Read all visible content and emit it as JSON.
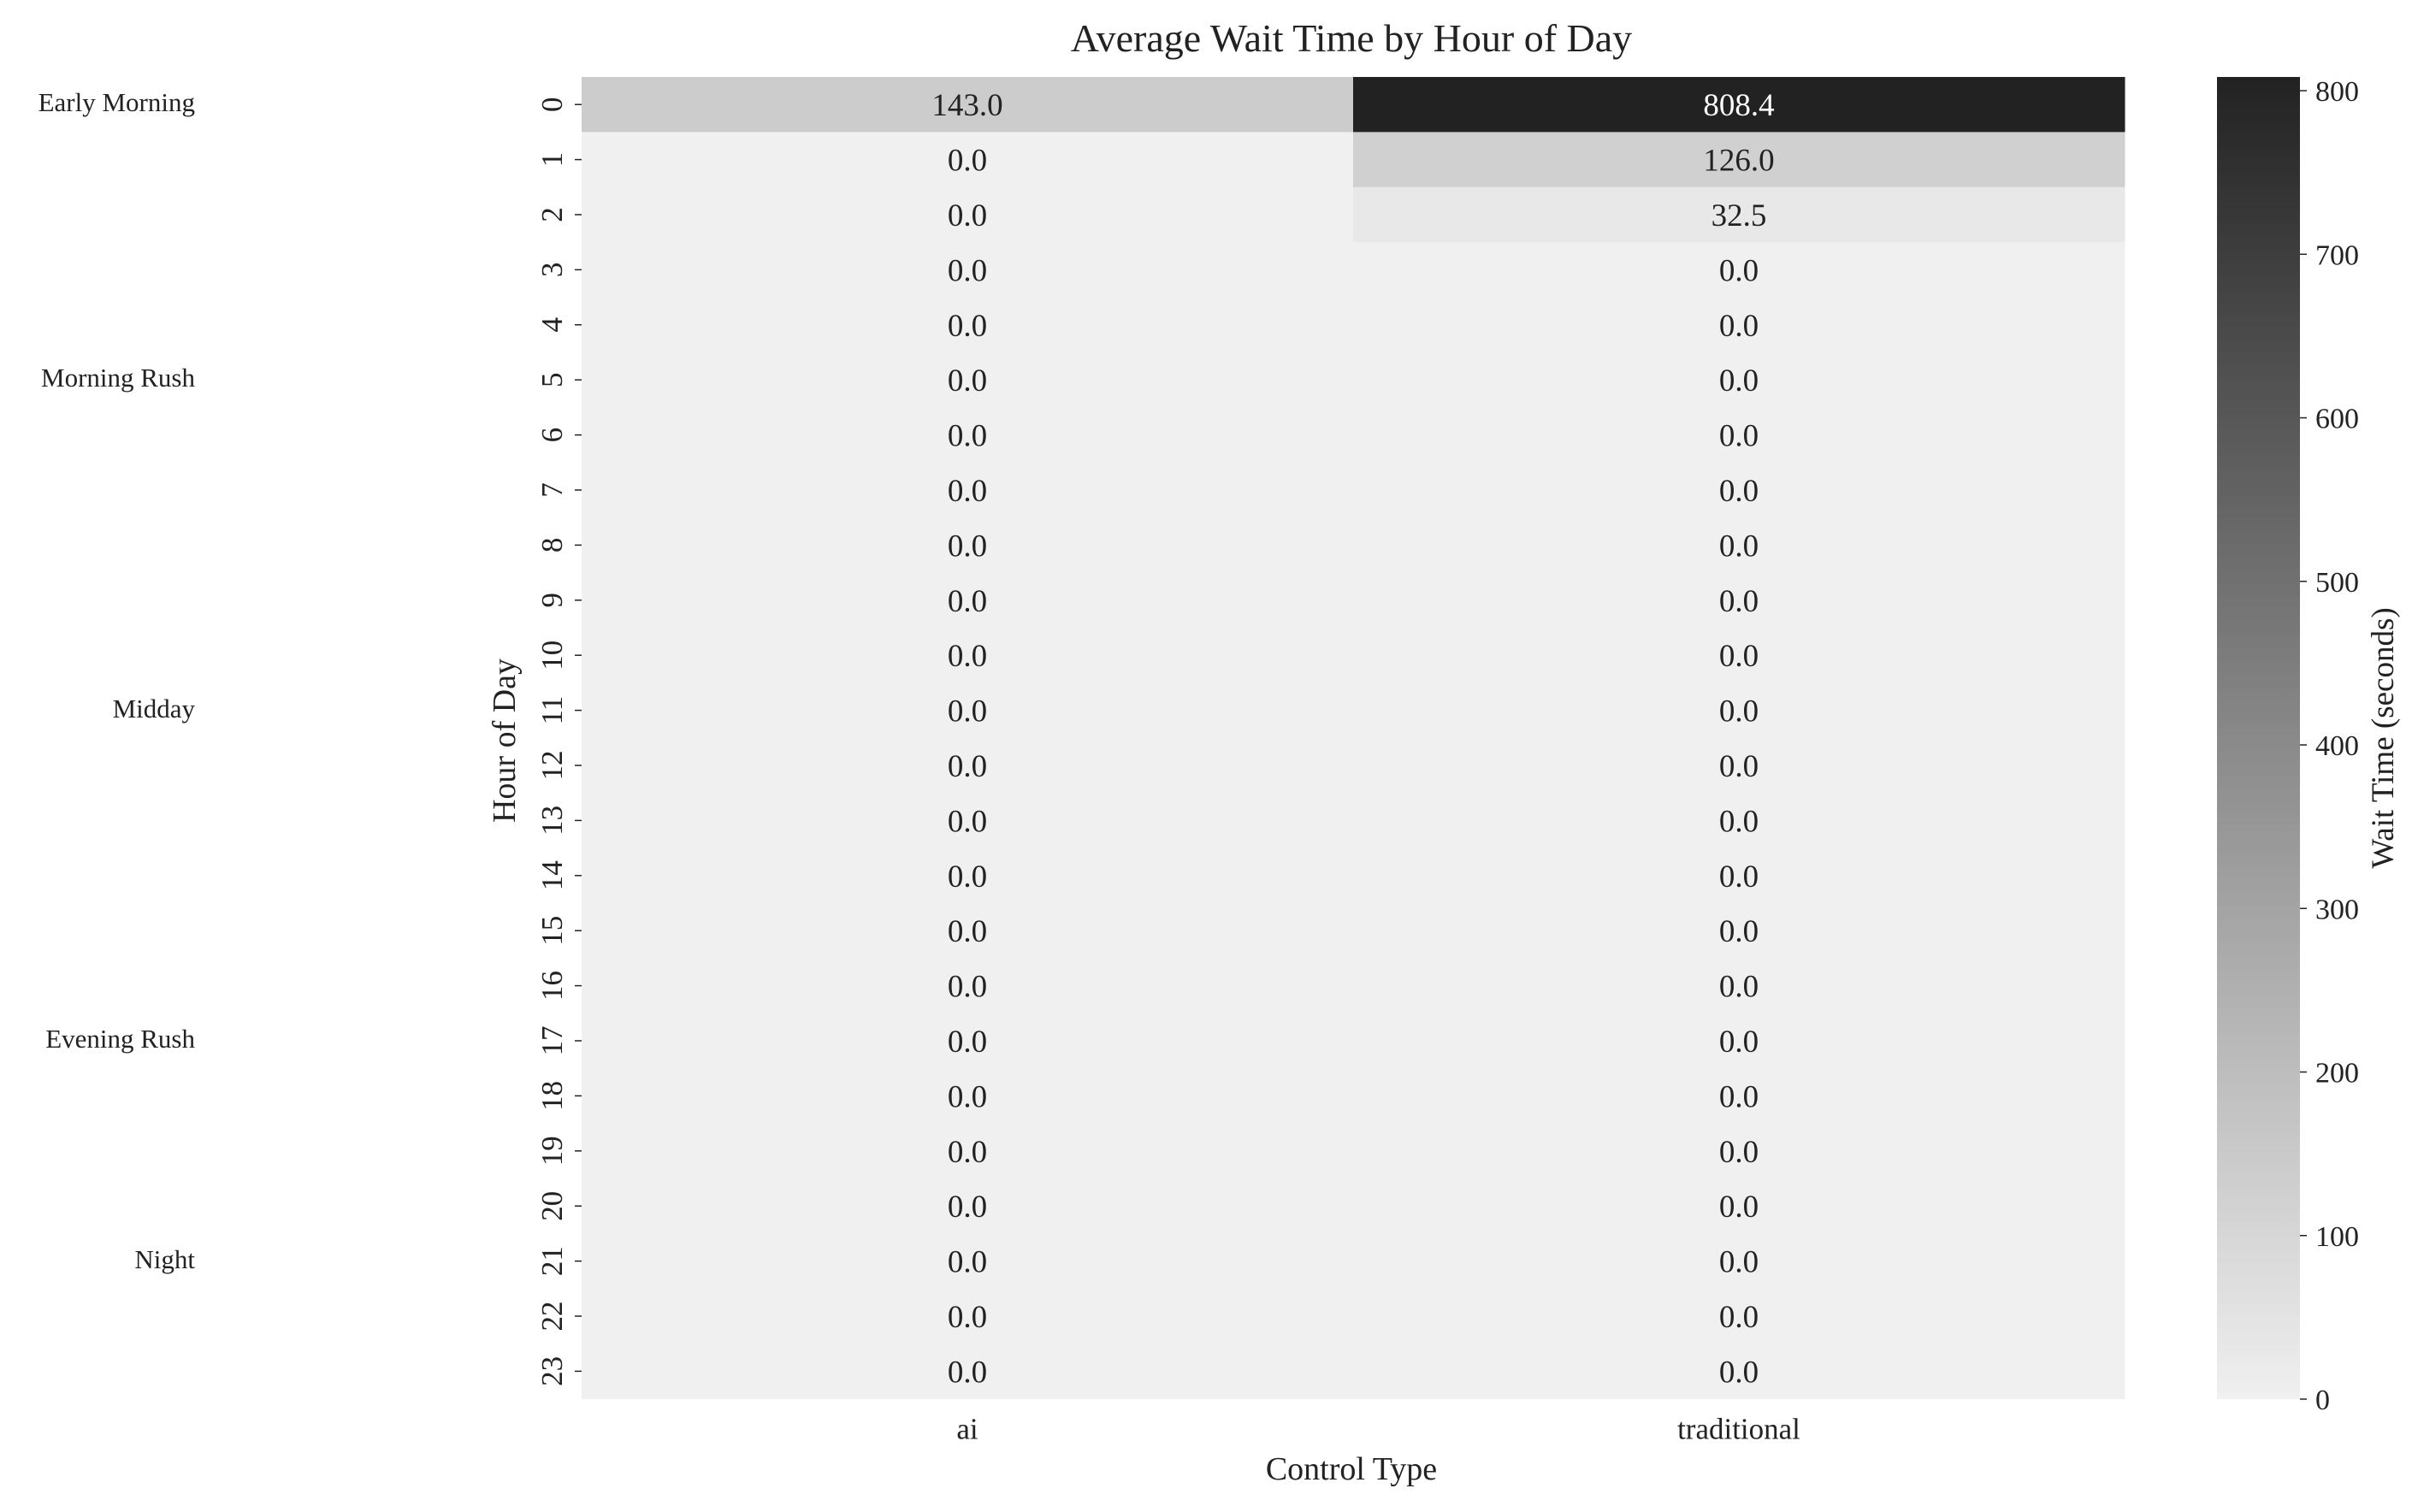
{
  "chart_data": {
    "type": "heatmap",
    "title": "Average Wait Time by Hour of Day",
    "xlabel": "Control Type",
    "ylabel": "Hour of Day",
    "colorbar_label": "Wait Time (seconds)",
    "columns": [
      "ai",
      "traditional"
    ],
    "rows": [
      "0",
      "1",
      "2",
      "3",
      "4",
      "5",
      "6",
      "7",
      "8",
      "9",
      "10",
      "11",
      "12",
      "13",
      "14",
      "15",
      "16",
      "17",
      "18",
      "19",
      "20",
      "21",
      "22",
      "23"
    ],
    "values": [
      [
        143.0,
        808.4
      ],
      [
        0.0,
        126.0
      ],
      [
        0.0,
        32.5
      ],
      [
        0.0,
        0.0
      ],
      [
        0.0,
        0.0
      ],
      [
        0.0,
        0.0
      ],
      [
        0.0,
        0.0
      ],
      [
        0.0,
        0.0
      ],
      [
        0.0,
        0.0
      ],
      [
        0.0,
        0.0
      ],
      [
        0.0,
        0.0
      ],
      [
        0.0,
        0.0
      ],
      [
        0.0,
        0.0
      ],
      [
        0.0,
        0.0
      ],
      [
        0.0,
        0.0
      ],
      [
        0.0,
        0.0
      ],
      [
        0.0,
        0.0
      ],
      [
        0.0,
        0.0
      ],
      [
        0.0,
        0.0
      ],
      [
        0.0,
        0.0
      ],
      [
        0.0,
        0.0
      ],
      [
        0.0,
        0.0
      ],
      [
        0.0,
        0.0
      ],
      [
        0.0,
        0.0
      ]
    ],
    "value_format": "0.0",
    "color_range": [
      0,
      808.4
    ],
    "color_low": "#f0f0f0",
    "color_high": "#222222",
    "colorbar_ticks": [
      0,
      100,
      200,
      300,
      400,
      500,
      600,
      700,
      800
    ],
    "grid": false,
    "period_labels": [
      {
        "label": "Early Morning",
        "hour": 0.5
      },
      {
        "label": "Morning Rush",
        "hour": 5.5
      },
      {
        "label": "Midday",
        "hour": 11.5
      },
      {
        "label": "Evening Rush",
        "hour": 17.5
      },
      {
        "label": "Night",
        "hour": 21.5
      }
    ]
  }
}
